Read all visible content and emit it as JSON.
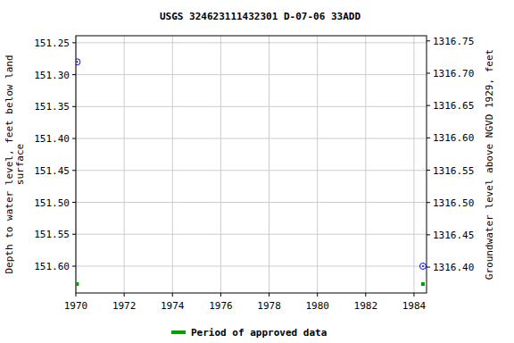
{
  "chart_data": {
    "type": "scatter",
    "title": "USGS 324623111432301 D-07-06 33ADD",
    "y_label": [
      "Depth to water level, feet below land",
      "surface"
    ],
    "y2_label": "Groundwater level above NGVD 1929, feet",
    "x": [
      1970.05,
      1984.37
    ],
    "series": [
      {
        "values": [
          151.28,
          151.6
        ],
        "color": "#0000ff",
        "marker": "circle"
      }
    ],
    "approved": {
      "name": "Period of approved data",
      "color": "#00a000",
      "x": [
        1970.05,
        1984.37
      ]
    },
    "xlim": [
      1970,
      1984.52
    ],
    "xticks": [
      1970,
      1972,
      1974,
      1976,
      1978,
      1980,
      1982,
      1984
    ],
    "ylim": [
      151.642,
      151.239
    ],
    "yticks": [
      151.25,
      {
        "value": 151.3,
        "label": "151.30"
      },
      151.35,
      {
        "value": 151.4,
        "label": "151.40"
      },
      151.45,
      {
        "value": 151.5,
        "label": "151.50"
      },
      151.55,
      {
        "value": 151.6,
        "label": "151.60"
      }
    ],
    "y2lim": [
      1316.36,
      1316.758
    ],
    "y2ticks": [
      1316.75,
      {
        "value": 1316.7,
        "label": "1316.70"
      },
      1316.65,
      {
        "value": 1316.6,
        "label": "1316.60"
      },
      1316.55,
      {
        "value": 1316.5,
        "label": "1316.50"
      },
      1316.45,
      {
        "value": 1316.4,
        "label": "1316.40"
      }
    ],
    "grid": true,
    "legend": "bottom"
  }
}
